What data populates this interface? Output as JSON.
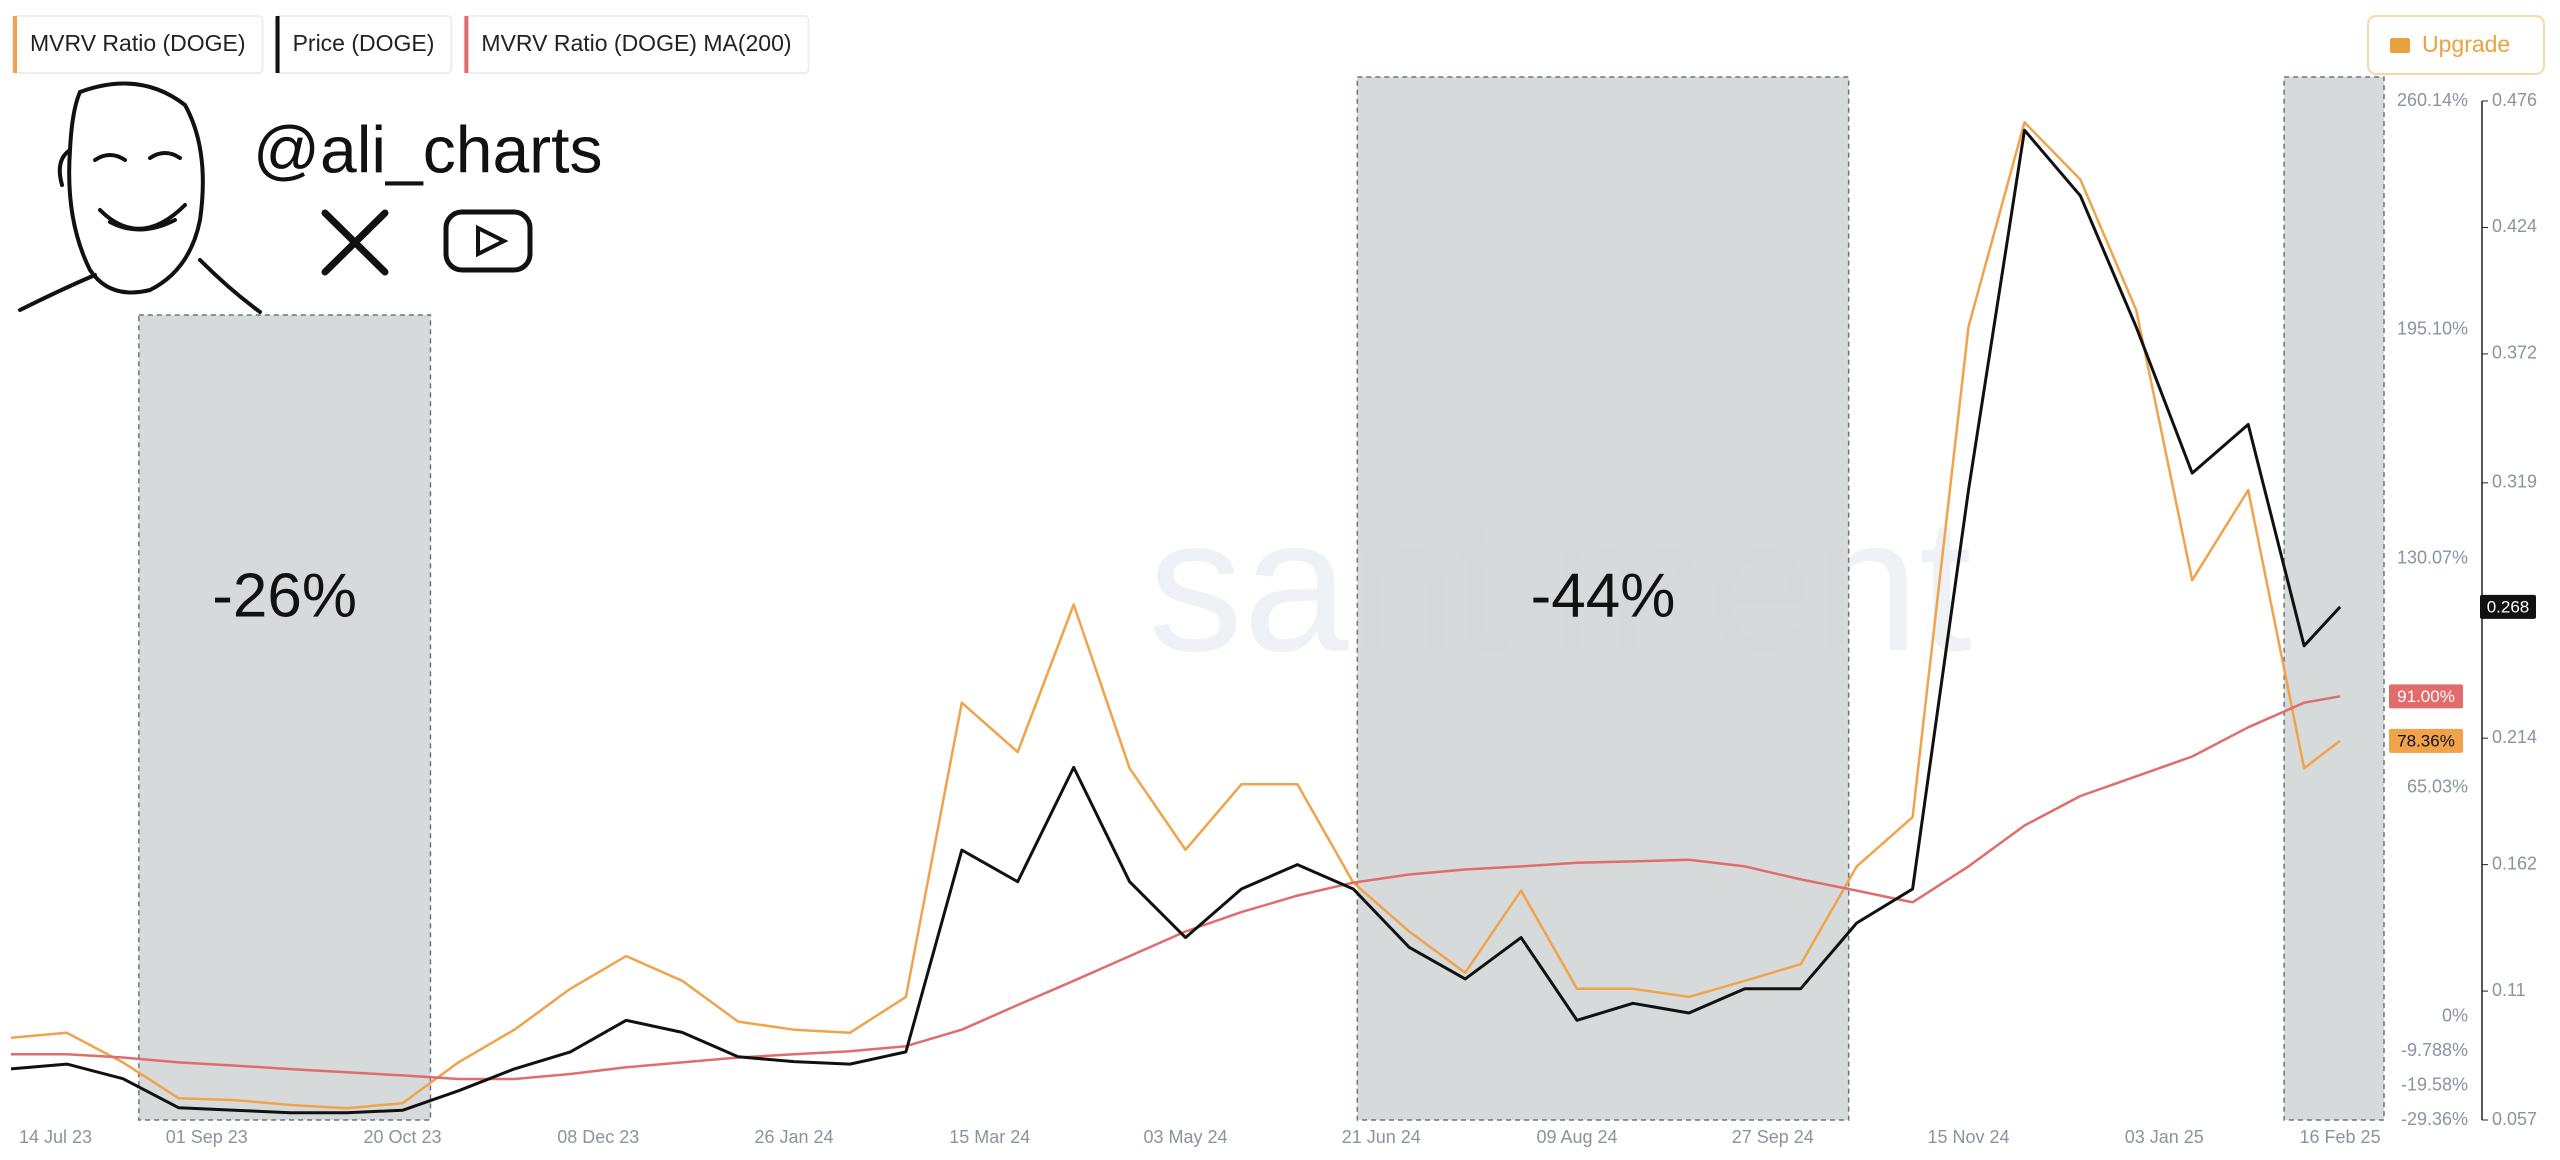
{
  "chart_data": {
    "type": "line",
    "x": [
      "2023-07-14",
      "2023-07-28",
      "2023-08-11",
      "2023-08-25",
      "2023-09-08",
      "2023-09-22",
      "2023-10-06",
      "2023-10-20",
      "2023-11-03",
      "2023-11-17",
      "2023-12-01",
      "2023-12-15",
      "2023-12-29",
      "2024-01-12",
      "2024-01-26",
      "2024-02-09",
      "2024-02-23",
      "2024-03-08",
      "2024-03-22",
      "2024-04-05",
      "2024-04-19",
      "2024-05-03",
      "2024-05-17",
      "2024-05-31",
      "2024-06-14",
      "2024-06-28",
      "2024-07-12",
      "2024-07-26",
      "2024-08-09",
      "2024-08-23",
      "2024-09-06",
      "2024-09-20",
      "2024-10-04",
      "2024-10-18",
      "2024-11-01",
      "2024-11-15",
      "2024-11-29",
      "2024-12-13",
      "2024-12-27",
      "2025-01-10",
      "2025-01-24",
      "2025-02-07",
      "2025-02-16"
    ],
    "series": [
      {
        "name": "MVRV Ratio (DOGE)",
        "color": "#f0a34a",
        "axis": "y2",
        "end_label": "78.36%",
        "values": [
          -6.0,
          -4.6,
          -13.0,
          -23.2,
          -23.7,
          -25.1,
          -26.0,
          -24.6,
          -13.0,
          -3.7,
          7.9,
          17.2,
          10.2,
          -1.4,
          -3.7,
          -4.6,
          5.6,
          89.2,
          75.2,
          117.1,
          70.6,
          47.4,
          66.0,
          66.0,
          38.1,
          24.2,
          12.5,
          35.8,
          7.9,
          7.9,
          5.6,
          10.2,
          14.9,
          42.7,
          56.7,
          196.0,
          254.1,
          237.8,
          200.7,
          124.0,
          149.6,
          70.6,
          78.36
        ]
      },
      {
        "name": "Price (DOGE)",
        "color": "#111111",
        "values": [
          0.078,
          0.08,
          0.074,
          0.062,
          0.061,
          0.06,
          0.06,
          0.061,
          0.069,
          0.078,
          0.085,
          0.098,
          0.093,
          0.083,
          0.081,
          0.08,
          0.085,
          0.168,
          0.155,
          0.202,
          0.155,
          0.132,
          0.152,
          0.162,
          0.152,
          0.128,
          0.115,
          0.132,
          0.098,
          0.105,
          0.101,
          0.111,
          0.111,
          0.138,
          0.152,
          0.316,
          0.464,
          0.437,
          0.383,
          0.323,
          0.343,
          0.252,
          0.268
        ]
      },
      {
        "name": "MVRV Ratio (DOGE) MA(200)",
        "color": "#e06c6c",
        "axis": "y2",
        "end_label": "91.00%",
        "values": [
          -10.7,
          -10.7,
          -11.6,
          -13.0,
          -13.9,
          -14.9,
          -15.8,
          -16.7,
          -17.7,
          -17.7,
          -16.3,
          -14.4,
          -13.0,
          -11.6,
          -10.7,
          -9.8,
          -8.4,
          -3.7,
          3.3,
          10.2,
          17.2,
          24.2,
          29.7,
          34.4,
          38.1,
          40.4,
          41.8,
          42.7,
          43.7,
          44.1,
          44.6,
          42.7,
          39.0,
          35.8,
          32.5,
          42.7,
          54.3,
          62.7,
          68.3,
          73.9,
          82.2,
          89.2,
          91.0
        ]
      }
    ],
    "xlim": [
      "2023-07-14",
      "2025-02-27"
    ],
    "xticks": [
      {
        "value": "2023-07-14",
        "label": "14 Jul 23"
      },
      {
        "value": "2023-09-01",
        "label": "01 Sep 23"
      },
      {
        "value": "2023-10-20",
        "label": "20 Oct 23"
      },
      {
        "value": "2023-12-08",
        "label": "08 Dec 23"
      },
      {
        "value": "2024-01-26",
        "label": "26 Jan 24"
      },
      {
        "value": "2024-03-15",
        "label": "15 Mar 24"
      },
      {
        "value": "2024-05-03",
        "label": "03 May 24"
      },
      {
        "value": "2024-06-21",
        "label": "21 Jun 24"
      },
      {
        "value": "2024-08-09",
        "label": "09 Aug 24"
      },
      {
        "value": "2024-09-27",
        "label": "27 Sep 24"
      },
      {
        "value": "2024-11-15",
        "label": "15 Nov 24"
      },
      {
        "value": "2025-01-03",
        "label": "03 Jan 25"
      },
      {
        "value": "2025-02-16",
        "label": "16 Feb 25"
      }
    ],
    "ylim": [
      0.057,
      0.476
    ],
    "yticks": [
      0.476,
      0.424,
      0.372,
      0.319,
      0.214,
      0.162,
      0.11,
      0.057
    ],
    "y2lim": [
      -29.36,
      260.14
    ],
    "y2ticks": [
      {
        "value": 260.14,
        "label": "260.14%"
      },
      {
        "value": 195.1,
        "label": "195.10%"
      },
      {
        "value": 130.07,
        "label": "130.07%"
      },
      {
        "value": 65.03,
        "label": "65.03%"
      },
      {
        "value": 0,
        "label": "0%"
      },
      {
        "value": -9.788,
        "label": "-9.788%"
      },
      {
        "value": -19.58,
        "label": "-19.58%"
      },
      {
        "value": -29.36,
        "label": "-29.36%"
      }
    ],
    "annotations": [
      {
        "start": "2023-08-15",
        "end": "2023-10-27",
        "label": "-26%"
      },
      {
        "start": "2024-06-15",
        "end": "2024-10-16",
        "label": "-44%"
      },
      {
        "start": "2025-02-02",
        "end": "2025-02-27"
      }
    ],
    "grid": false
  },
  "branding": {
    "handle": "@ali_charts",
    "watermark": "santiment"
  },
  "toolbar": {
    "upgrade": "Upgrade"
  }
}
